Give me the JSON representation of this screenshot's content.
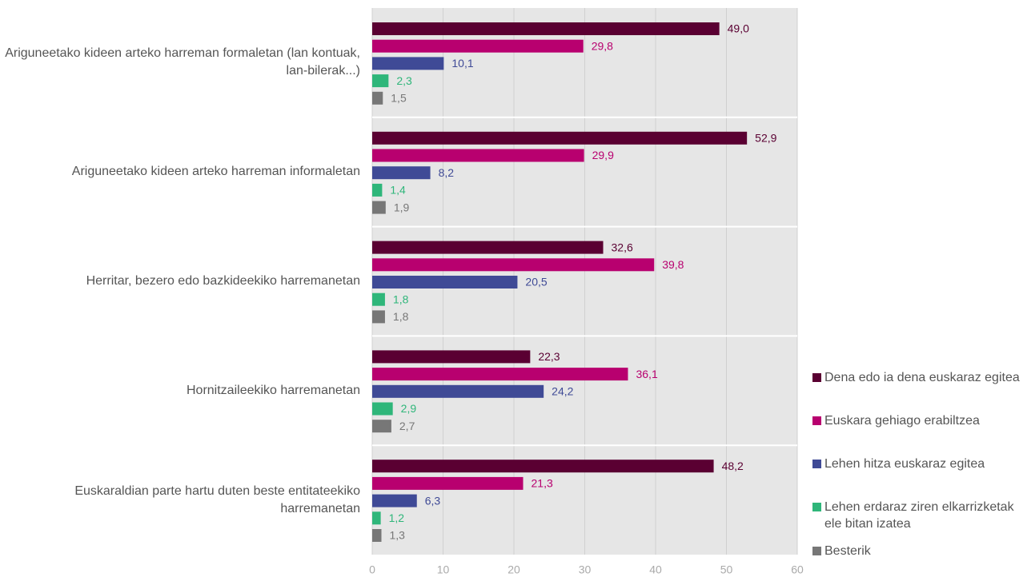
{
  "chart_data": {
    "type": "hbar",
    "categories": [
      "Ariguneetako kideen arteko harreman formaletan (lan kontuak, lan-bilerak...)",
      "Ariguneetako kideen arteko harreman informaletan",
      "Herritar, bezero edo bazkideekiko harremanetan",
      "Hornitzaileekiko harremanetan",
      "Euskaraldian parte hartu duten beste entitateekiko harremanetan"
    ],
    "series": [
      {
        "name": "Dena edo ia dena euskaraz egitea",
        "color": "#5a0032",
        "values": [
          49.0,
          52.9,
          32.6,
          22.3,
          48.2
        ],
        "value_labels": [
          "49,0",
          "52,9",
          "32,6",
          "22,3",
          "48,2"
        ]
      },
      {
        "name": "Euskara gehiago erabiltzea",
        "color": "#b8006f",
        "values": [
          29.8,
          29.9,
          39.8,
          36.1,
          21.3
        ],
        "value_labels": [
          "29,8",
          "29,9",
          "39,8",
          "36,1",
          "21,3"
        ]
      },
      {
        "name": "Lehen hitza euskaraz egitea",
        "color": "#3f4a96",
        "values": [
          10.1,
          8.2,
          20.5,
          24.2,
          6.3
        ],
        "value_labels": [
          "10,1",
          "8,2",
          "20,5",
          "24,2",
          "6,3"
        ]
      },
      {
        "name": "Lehen erdaraz ziren elkarrizketak ele bitan izatea",
        "color": "#2fb67a",
        "values": [
          2.3,
          1.4,
          1.8,
          2.9,
          1.2
        ],
        "value_labels": [
          "2,3",
          "1,4",
          "1,8",
          "2,9",
          "1,2"
        ]
      },
      {
        "name": "Besterik",
        "color": "#777777",
        "values": [
          1.5,
          1.9,
          1.8,
          2.7,
          1.3
        ],
        "value_labels": [
          "1,5",
          "1,9",
          "1,8",
          "2,7",
          "1,3"
        ]
      }
    ],
    "xlim": [
      0,
      60
    ],
    "xticks": [
      0,
      10,
      20,
      30,
      40,
      50,
      60
    ],
    "grid": true,
    "legend": "right"
  }
}
